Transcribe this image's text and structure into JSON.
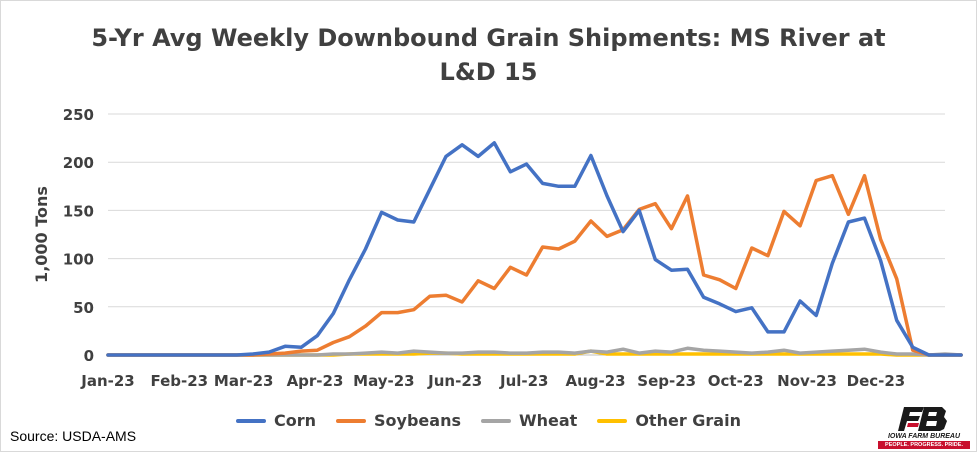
{
  "title_line1": "5-Yr Avg Weekly Downbound Grain Shipments: MS River at",
  "title_line2": "L&D 15",
  "source": "Source: USDA-AMS",
  "logo": {
    "name": "IOWA FARM BUREAU",
    "tagline": "PEOPLE. PROGRESS. PRIDE."
  },
  "chart_data": {
    "type": "line",
    "title": "5-Yr Avg Weekly Downbound Grain Shipments: MS River at L&D 15",
    "ylabel": "1,000 Tons",
    "xlabel": "",
    "ylim": [
      0,
      250
    ],
    "yticks": [
      0,
      50,
      100,
      150,
      200,
      250
    ],
    "xlim": [
      0,
      52
    ],
    "xticks": [
      {
        "label": "Jan-23",
        "week": 0
      },
      {
        "label": "Feb-23",
        "week": 4.43
      },
      {
        "label": "Mar-23",
        "week": 8.43
      },
      {
        "label": "Apr-23",
        "week": 12.86
      },
      {
        "label": "May-23",
        "week": 17.14
      },
      {
        "label": "Jun-23",
        "week": 21.57
      },
      {
        "label": "Jul-23",
        "week": 25.86
      },
      {
        "label": "Aug-23",
        "week": 30.29
      },
      {
        "label": "Sep-23",
        "week": 34.71
      },
      {
        "label": "Oct-23",
        "week": 39
      },
      {
        "label": "Nov-23",
        "week": 43.43
      },
      {
        "label": "Dec-23",
        "week": 47.71
      }
    ],
    "grid": "horizontal",
    "legend": "bottom",
    "series": [
      {
        "name": "Corn",
        "color": "#4472C4",
        "values": [
          0,
          0,
          0,
          0,
          0,
          0,
          0,
          0,
          0,
          1,
          3,
          9,
          8,
          20,
          43,
          78,
          110,
          148,
          140,
          138,
          172,
          206,
          218,
          206,
          220,
          190,
          198,
          178,
          175,
          175,
          207,
          165,
          128,
          150,
          99,
          88,
          89,
          60,
          53,
          45,
          49,
          24,
          24,
          56,
          41,
          95,
          138,
          142,
          98,
          36,
          8,
          0,
          0,
          0
        ]
      },
      {
        "name": "Soybeans",
        "color": "#ED7D31",
        "values": [
          0,
          0,
          0,
          0,
          0,
          0,
          0,
          0,
          0,
          0,
          1,
          2,
          4,
          5,
          13,
          19,
          30,
          44,
          44,
          47,
          61,
          62,
          55,
          77,
          69,
          91,
          83,
          112,
          110,
          118,
          139,
          123,
          130,
          151,
          157,
          131,
          165,
          83,
          78,
          69,
          111,
          103,
          149,
          134,
          181,
          186,
          146,
          186,
          120,
          79,
          5,
          0,
          0,
          0
        ]
      },
      {
        "name": "Wheat",
        "color": "#A5A5A5",
        "values": [
          0,
          0,
          0,
          0,
          0,
          0,
          0,
          0,
          0,
          0,
          0,
          0,
          0,
          0,
          1,
          1,
          2,
          3,
          2,
          4,
          3,
          2,
          2,
          3,
          3,
          2,
          2,
          3,
          3,
          2,
          4,
          3,
          6,
          2,
          4,
          3,
          7,
          5,
          4,
          3,
          2,
          3,
          5,
          2,
          3,
          4,
          5,
          6,
          3,
          1,
          1,
          0,
          1,
          0
        ]
      },
      {
        "name": "Other Grain",
        "color": "#FFC000",
        "values": [
          0,
          0,
          0,
          0,
          0,
          0,
          0,
          0,
          0,
          0,
          0,
          0,
          0,
          0,
          0,
          1,
          1,
          1,
          1,
          1,
          2,
          2,
          1,
          1,
          1,
          1,
          1,
          1,
          1,
          1,
          4,
          1,
          1,
          1,
          1,
          1,
          1,
          1,
          1,
          1,
          1,
          1,
          1,
          1,
          1,
          1,
          1,
          1,
          1,
          0,
          0,
          0,
          0,
          0
        ]
      }
    ]
  }
}
